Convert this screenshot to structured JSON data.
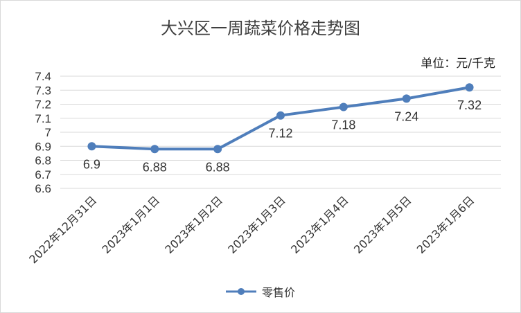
{
  "chart_data": {
    "type": "line",
    "title": "大兴区一周蔬菜价格走势图",
    "unit_note": "单位：元/千克",
    "categories": [
      "2022年12月31日",
      "2023年1月1日",
      "2023年1月2日",
      "2023年1月3日",
      "2023年1月4日",
      "2023年1月5日",
      "2023年1月6日"
    ],
    "series": [
      {
        "name": "零售价",
        "values": [
          6.9,
          6.88,
          6.88,
          7.12,
          7.18,
          7.24,
          7.32
        ],
        "color": "#4f7ebb"
      }
    ],
    "data_labels": [
      "6.9",
      "6.88",
      "6.88",
      "7.12",
      "7.18",
      "7.24",
      "7.32"
    ],
    "ylim": [
      6.6,
      7.4
    ],
    "yticks": [
      "6.6",
      "6.7",
      "6.8",
      "6.9",
      "7",
      "7.1",
      "7.2",
      "7.3",
      "7.4"
    ],
    "grid": true,
    "legend_position": "bottom",
    "gridline_color": "#d9d9d9",
    "text_color": "#333333"
  }
}
